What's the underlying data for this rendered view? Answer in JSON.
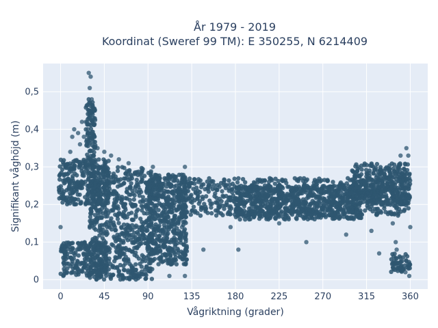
{
  "chart_data": {
    "type": "scatter",
    "title": "År 1979 - 2019",
    "subtitle": "Koordinat (Sweref 99 TM): E 350255, N 6214409",
    "xlabel": "Vågriktning (grader)",
    "ylabel": "Signifikant våghöjd (m)",
    "xlim": [
      -18,
      378
    ],
    "ylim": [
      -0.025,
      0.575
    ],
    "xticks": [
      0,
      45,
      90,
      135,
      180,
      225,
      270,
      315,
      360
    ],
    "xtick_labels": [
      "0",
      "45",
      "90",
      "135",
      "180",
      "225",
      "270",
      "315",
      "360"
    ],
    "yticks": [
      0,
      0.1,
      0.2,
      0.3,
      0.4,
      0.5
    ],
    "ytick_labels": [
      "0",
      "0,1",
      "0,2",
      "0,3",
      "0,4",
      "0,5"
    ],
    "grid": true,
    "legend": "none",
    "marker_color": "#2e5670",
    "plot_background": "#e5ecf6",
    "series": [
      {
        "values": [
          {
            "x": 29,
            "y": 0.55
          },
          {
            "x": 31,
            "y": 0.54
          },
          {
            "x": 30,
            "y": 0.51
          },
          {
            "x": 32,
            "y": 0.48
          },
          {
            "x": 31,
            "y": 0.45
          },
          {
            "x": 29,
            "y": 0.43
          },
          {
            "x": 33,
            "y": 0.44
          },
          {
            "x": 26,
            "y": 0.42
          },
          {
            "x": 22,
            "y": 0.42
          },
          {
            "x": 28,
            "y": 0.4
          },
          {
            "x": 14,
            "y": 0.4
          },
          {
            "x": 18,
            "y": 0.39
          },
          {
            "x": 24,
            "y": 0.38
          },
          {
            "x": 12,
            "y": 0.38
          },
          {
            "x": 35,
            "y": 0.38
          },
          {
            "x": 20,
            "y": 0.36
          },
          {
            "x": 27,
            "y": 0.36
          },
          {
            "x": 10,
            "y": 0.34
          },
          {
            "x": 38,
            "y": 0.35
          },
          {
            "x": 45,
            "y": 0.34
          },
          {
            "x": 52,
            "y": 0.33
          },
          {
            "x": 60,
            "y": 0.32
          },
          {
            "x": 70,
            "y": 0.31
          },
          {
            "x": 95,
            "y": 0.3
          },
          {
            "x": 128,
            "y": 0.3
          },
          {
            "x": 0,
            "y": 0.14
          },
          {
            "x": 2,
            "y": 0.08
          },
          {
            "x": 320,
            "y": 0.13
          },
          {
            "x": 328,
            "y": 0.07
          },
          {
            "x": 342,
            "y": 0.15
          },
          {
            "x": 346,
            "y": 0.08
          },
          {
            "x": 345,
            "y": 0.1
          },
          {
            "x": 253,
            "y": 0.1
          },
          {
            "x": 294,
            "y": 0.12
          },
          {
            "x": 147,
            "y": 0.08
          },
          {
            "x": 183,
            "y": 0.08
          },
          {
            "x": 128,
            "y": 0.01
          },
          {
            "x": 112,
            "y": 0.01
          },
          {
            "x": 125,
            "y": 0.14
          },
          {
            "x": 175,
            "y": 0.14
          },
          {
            "x": 225,
            "y": 0.15
          },
          {
            "x": 356,
            "y": 0.35
          },
          {
            "x": 350,
            "y": 0.33
          },
          {
            "x": 358,
            "y": 0.33
          },
          {
            "x": 360,
            "y": 0.14
          },
          {
            "x": 359,
            "y": 0.01
          },
          {
            "x": 355,
            "y": 0.02
          }
        ]
      }
    ],
    "density_regions": [
      {
        "x0": -2,
        "x1": 50,
        "y0": 0.2,
        "y1": 0.32
      },
      {
        "x0": 30,
        "x1": 95,
        "y0": 0.0,
        "y1": 0.3
      },
      {
        "x0": 0,
        "x1": 48,
        "y0": 0.01,
        "y1": 0.1
      },
      {
        "x0": 90,
        "x1": 130,
        "y0": 0.04,
        "y1": 0.28
      },
      {
        "x0": 120,
        "x1": 360,
        "y0": 0.17,
        "y1": 0.27
      },
      {
        "x0": 180,
        "x1": 310,
        "y0": 0.16,
        "y1": 0.25
      },
      {
        "x0": 300,
        "x1": 360,
        "y0": 0.2,
        "y1": 0.31
      },
      {
        "x0": 340,
        "x1": 360,
        "y0": 0.02,
        "y1": 0.07
      },
      {
        "x0": 26,
        "x1": 36,
        "y0": 0.32,
        "y1": 0.48
      }
    ]
  }
}
